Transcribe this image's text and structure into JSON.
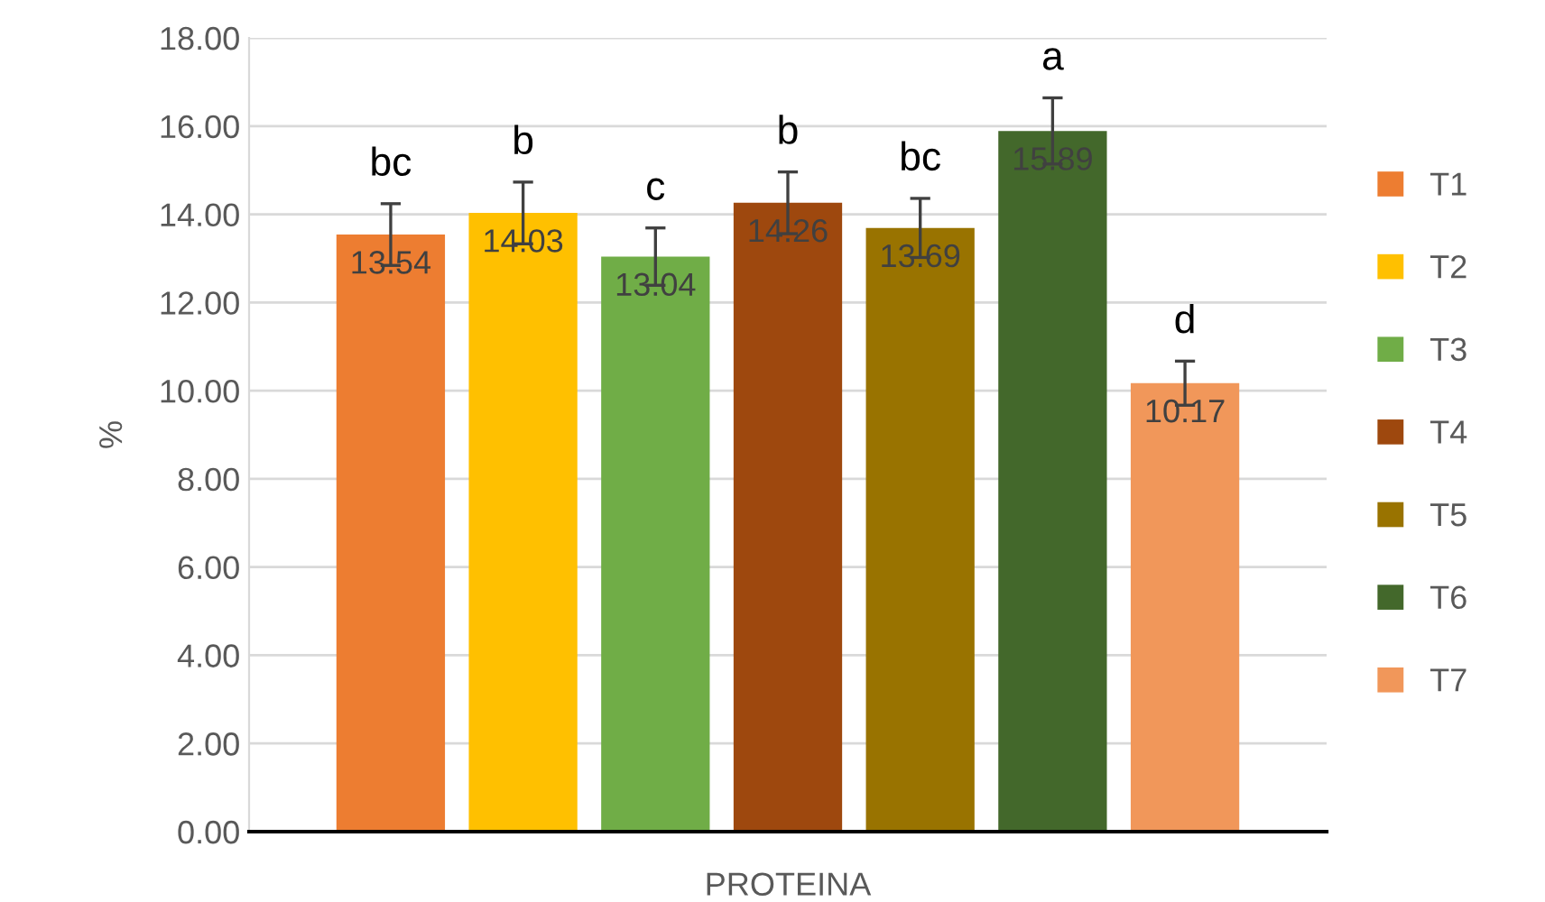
{
  "chart_data": {
    "type": "bar",
    "categories": [
      "PROTEINA"
    ],
    "ylabel": "%",
    "ylim": [
      0,
      18
    ],
    "yticks": [
      {
        "value": 0,
        "label": "0.00"
      },
      {
        "value": 2,
        "label": "2.00"
      },
      {
        "value": 4,
        "label": "4.00"
      },
      {
        "value": 6,
        "label": "6.00"
      },
      {
        "value": 8,
        "label": "8.00"
      },
      {
        "value": 10,
        "label": "10.00"
      },
      {
        "value": 12,
        "label": "12.00"
      },
      {
        "value": 14,
        "label": "14.00"
      },
      {
        "value": 16,
        "label": "16.00"
      },
      {
        "value": 18,
        "label": "18.00"
      }
    ],
    "grid": "y",
    "legend": "right",
    "data_labels": true,
    "series": [
      {
        "name": "T1",
        "color": "#ed7d31",
        "values": [
          13.54
        ],
        "errors": [
          0.7
        ]
      },
      {
        "name": "T2",
        "color": "#ffc000",
        "values": [
          14.03
        ],
        "errors": [
          0.7
        ]
      },
      {
        "name": "T3",
        "color": "#70ad47",
        "values": [
          13.04
        ],
        "errors": [
          0.65
        ]
      },
      {
        "name": "T4",
        "color": "#9e480e",
        "values": [
          14.26
        ],
        "errors": [
          0.7
        ]
      },
      {
        "name": "T5",
        "color": "#997300",
        "values": [
          13.69
        ],
        "errors": [
          0.67
        ]
      },
      {
        "name": "T6",
        "color": "#43682b",
        "values": [
          15.89
        ],
        "errors": [
          0.75
        ]
      },
      {
        "name": "T7",
        "color": "#f1975a",
        "values": [
          10.17
        ],
        "errors": [
          0.5
        ]
      }
    ],
    "annotations": [
      "bc",
      "b",
      "c",
      "b",
      "bc",
      "a",
      "d"
    ]
  }
}
